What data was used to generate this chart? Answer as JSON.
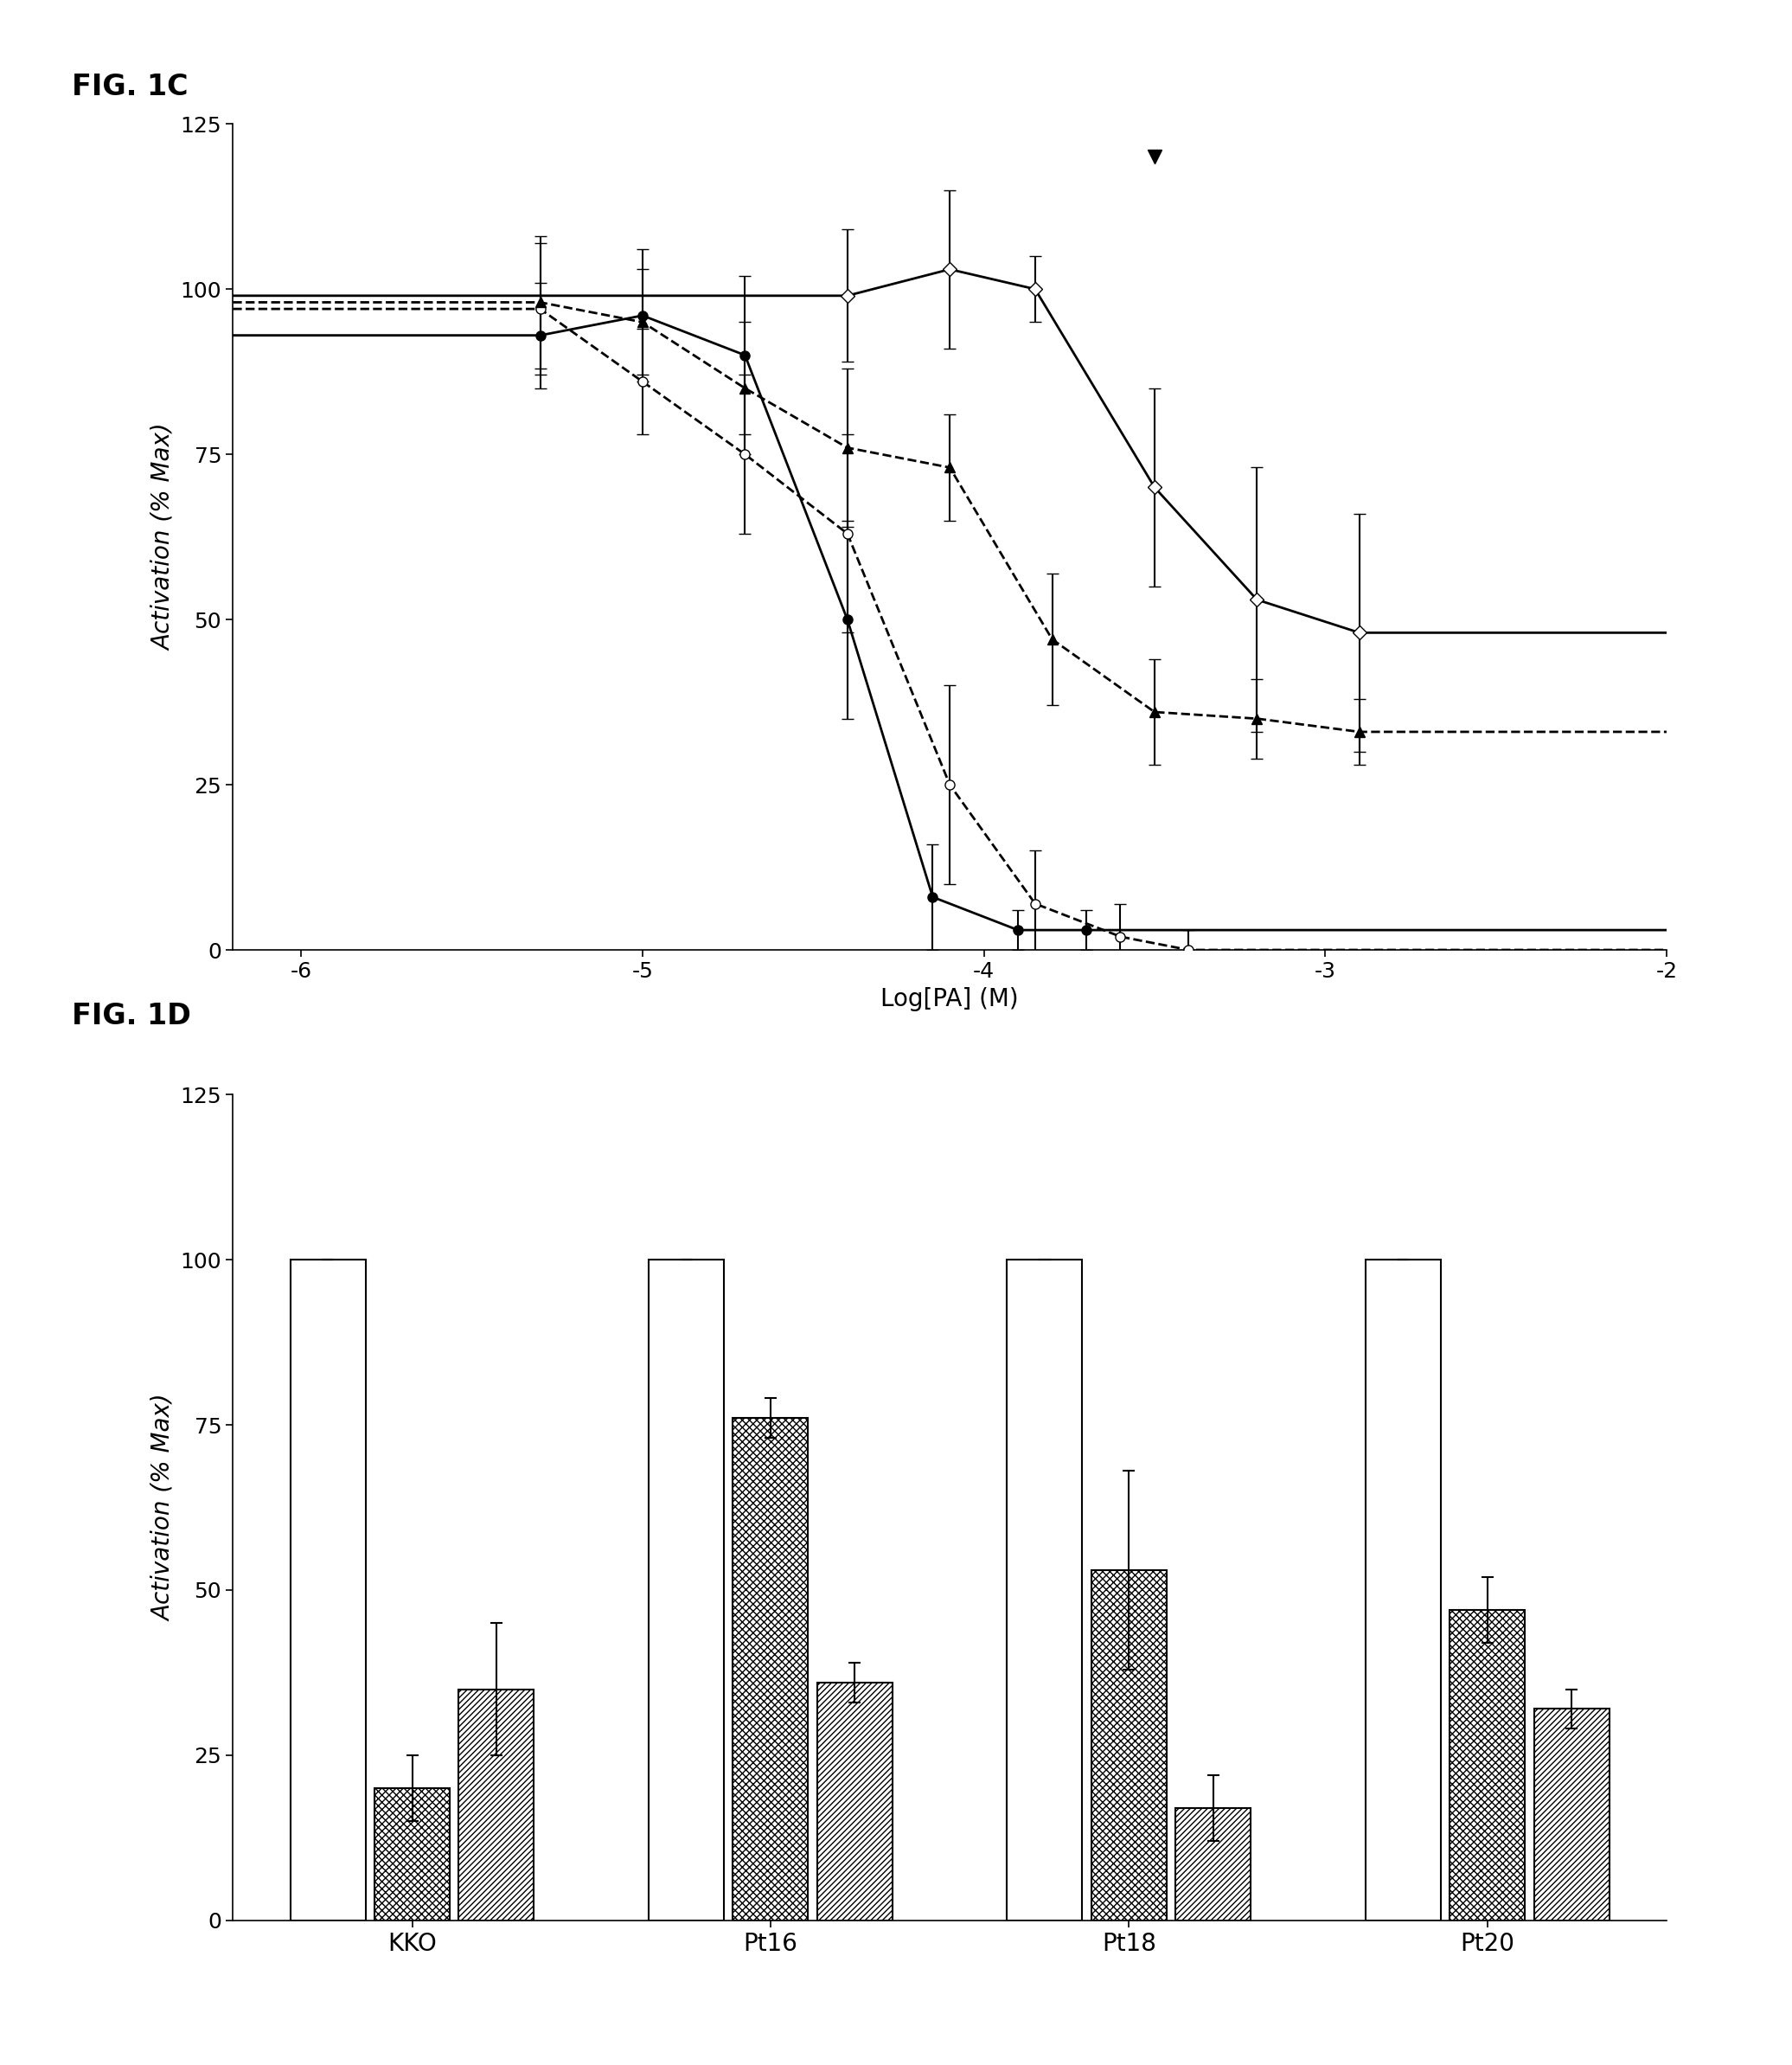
{
  "fig_title_C": "FIG. 1C",
  "fig_title_D": "FIG. 1D",
  "ylabel_C": "Activation (% Max)",
  "xlabel_C": "Log[PA] (M)",
  "ylabel_D": "Activation (% Max)",
  "ylim_C": [
    0,
    125
  ],
  "xlim_C": [
    -6.2,
    -2.0
  ],
  "yticks_C": [
    0,
    25,
    50,
    75,
    100,
    125
  ],
  "xticks_C": [
    -6,
    -5,
    -4,
    -3,
    -2
  ],
  "background_color": "#ffffff",
  "series_filled_circle": {
    "x": [
      -5.3,
      -5.0,
      -4.7,
      -4.4,
      -4.15,
      -3.9,
      -3.7
    ],
    "y": [
      93,
      96,
      90,
      50,
      8,
      3,
      3
    ],
    "yerr": [
      8,
      10,
      12,
      15,
      8,
      3,
      3
    ]
  },
  "series_open_circle": {
    "x": [
      -5.3,
      -5.0,
      -4.7,
      -4.4,
      -4.1,
      -3.85,
      -3.6,
      -3.4
    ],
    "y": [
      97,
      86,
      75,
      63,
      25,
      7,
      2,
      0
    ],
    "yerr": [
      10,
      8,
      12,
      15,
      15,
      8,
      5,
      3
    ]
  },
  "series_filled_triangle": {
    "x": [
      -5.3,
      -5.0,
      -4.7,
      -4.4,
      -4.1,
      -3.8,
      -3.5,
      -3.2,
      -2.9
    ],
    "y": [
      98,
      95,
      85,
      76,
      73,
      47,
      36,
      35,
      33
    ],
    "yerr": [
      10,
      8,
      10,
      12,
      8,
      10,
      8,
      6,
      5
    ]
  },
  "series_open_diamond": {
    "x": [
      -4.4,
      -4.1,
      -3.85,
      -3.5,
      -3.2,
      -2.9
    ],
    "y": [
      99,
      103,
      100,
      70,
      53,
      48
    ],
    "yerr": [
      10,
      12,
      5,
      15,
      20,
      18
    ]
  },
  "series_filled_invtriangle": {
    "x": [
      -3.5
    ],
    "y": [
      120
    ]
  },
  "bar_categories": [
    "KKO",
    "Pt16",
    "Pt18",
    "Pt20"
  ],
  "bar_white": [
    100,
    100,
    100,
    100
  ],
  "bar_white_err": [
    0,
    0,
    0,
    0
  ],
  "bar_hatch1": [
    20,
    76,
    53,
    47
  ],
  "bar_hatch1_err": [
    5,
    3,
    15,
    5
  ],
  "bar_hatch2": [
    35,
    36,
    17,
    32
  ],
  "bar_hatch2_err": [
    10,
    3,
    5,
    3
  ],
  "ylim_D": [
    0,
    125
  ],
  "yticks_D": [
    0,
    25,
    50,
    75,
    100,
    125
  ]
}
